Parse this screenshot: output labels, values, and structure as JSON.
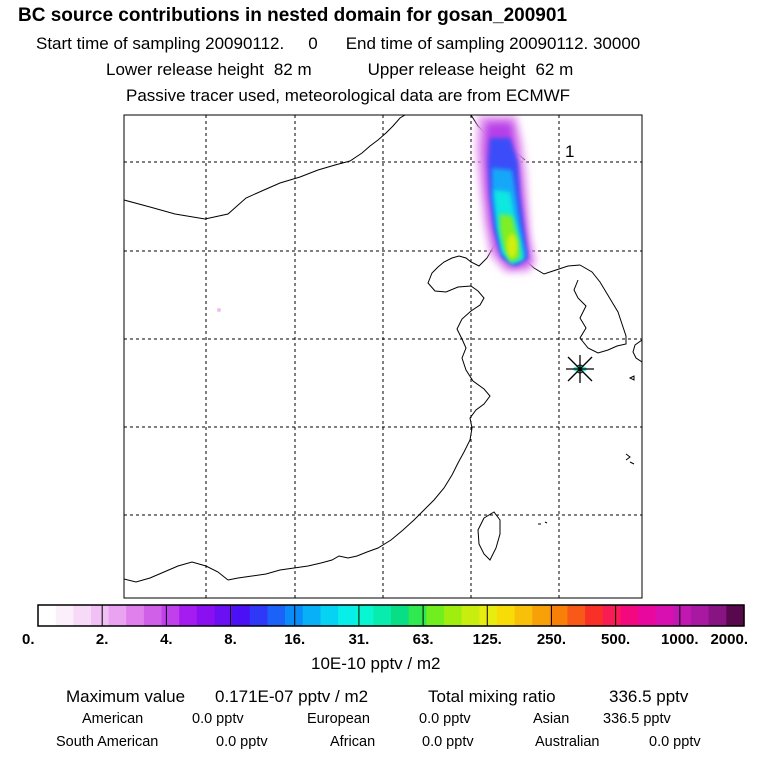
{
  "header": {
    "title": "BC  source contributions in nested domain for gosan_200901",
    "start_label": "Start time of sampling 20090112.",
    "start_hour": "0",
    "end_label": "End time of sampling 20090112. 30000",
    "lower_label": "Lower release height",
    "lower_value": "82 m",
    "upper_label": "Upper release height",
    "upper_value": "62 m",
    "tracer_note": "Passive tracer used, meteorological data are from ECMWF"
  },
  "chart_data": {
    "type": "heatmap",
    "title": "BC  source contributions in nested domain for gosan_200901",
    "panel_label": "1",
    "colorbar": {
      "unit": "10E-10 pptv / m2",
      "ticks": [
        "0.",
        "2.",
        "4.",
        "8.",
        "16.",
        "31.",
        "63.",
        "125.",
        "250.",
        "500.",
        "1000.",
        "2000."
      ],
      "colors": [
        "#ffffff",
        "#fbeffc",
        "#f6daf8",
        "#f1c0f5",
        "#eaa3f1",
        "#df80ec",
        "#d060e8",
        "#c040ec",
        "#a41cef",
        "#8a10f2",
        "#6c10f4",
        "#4c10f6",
        "#3038f8",
        "#1a62f8",
        "#0a8cf8",
        "#08b0f8",
        "#06d2f4",
        "#08eee8",
        "#08f6d2",
        "#08ecae",
        "#08de84",
        "#30e850",
        "#70ee20",
        "#a0ee10",
        "#c8ee10",
        "#e8ec10",
        "#f8dc08",
        "#f8c008",
        "#f8a008",
        "#f88008",
        "#f85818",
        "#f83028",
        "#f81c54",
        "#f40880",
        "#e8089e",
        "#d810b2",
        "#c018b0",
        "#a818a0",
        "#881484",
        "#58084c"
      ]
    },
    "receptor_marker": "gosan-receptor",
    "summary": {
      "max_label": "Maximum value",
      "max_value": "0.171E-07 pptv / m2",
      "total_label": "Total mixing ratio",
      "total_value": "336.5 pptv"
    },
    "regions": [
      {
        "name": "American",
        "value": "0.0 pptv"
      },
      {
        "name": "European",
        "value": "0.0 pptv"
      },
      {
        "name": "Asian",
        "value": "336.5 pptv"
      },
      {
        "name": "South American",
        "value": "0.0 pptv"
      },
      {
        "name": "African",
        "value": "0.0 pptv"
      },
      {
        "name": "Australian",
        "value": "0.0 pptv"
      }
    ]
  }
}
